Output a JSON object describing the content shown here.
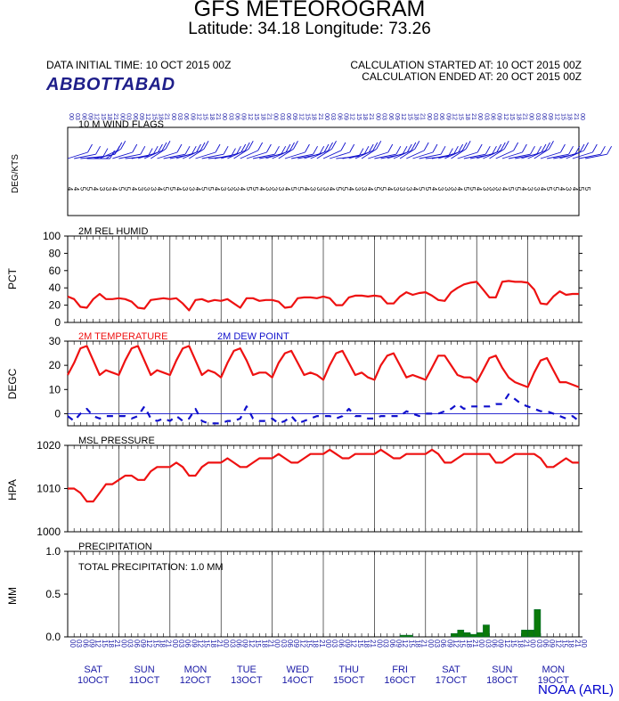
{
  "header": {
    "title": "GFS METEOROGRAM",
    "subtitle": "Latitude: 34.18 Longitude:  73.26",
    "data_initial_time": "DATA INITIAL TIME: 10 OCT 2015 00Z",
    "calc_started": "CALCULATION STARTED AT: 10 OCT 2015 00Z",
    "calc_ended": "CALCULATION ENDED AT: 20 OCT 2015 00Z",
    "station": "ABBOTTABAD",
    "credit": "NOAA (ARL)"
  },
  "colors": {
    "red": "#ee1111",
    "blue": "#1010cc",
    "green": "#0a7a0a",
    "axis_blue": "#1a1aa6"
  },
  "x_axis": {
    "hour_labels": [
      "00",
      "03",
      "06",
      "09",
      "12",
      "15",
      "18",
      "21"
    ],
    "days": [
      {
        "day": "SAT",
        "date": "10OCT"
      },
      {
        "day": "SUN",
        "date": "11OCT"
      },
      {
        "day": "MON",
        "date": "12OCT"
      },
      {
        "day": "TUE",
        "date": "13OCT"
      },
      {
        "day": "WED",
        "date": "14OCT"
      },
      {
        "day": "THU",
        "date": "15OCT"
      },
      {
        "day": "FRI",
        "date": "16OCT"
      },
      {
        "day": "SAT",
        "date": "17OCT"
      },
      {
        "day": "SUN",
        "date": "18OCT"
      },
      {
        "day": "MON",
        "date": "19OCT"
      }
    ]
  },
  "chart_data": [
    {
      "type": "wind-barbs",
      "title": "10 M  WIND FLAGS",
      "ylabel": "DEG/KTS",
      "hours_step": 3,
      "direction_deg": [
        240,
        250,
        260,
        270,
        250,
        230,
        220,
        240,
        250,
        260,
        250,
        240,
        230,
        220,
        240,
        250,
        250,
        240,
        230,
        220,
        240,
        250,
        260,
        250,
        240,
        230,
        220,
        230,
        240,
        250,
        250,
        240,
        230,
        220,
        240,
        250,
        250,
        240,
        230,
        220,
        230,
        240,
        260,
        250,
        240,
        230,
        220,
        240,
        250,
        250,
        240,
        230,
        220,
        230,
        240,
        250,
        260,
        250,
        240,
        230,
        220,
        240,
        250,
        250,
        240,
        230,
        220,
        230,
        240,
        250,
        250,
        240,
        230,
        220,
        240,
        250,
        250,
        240,
        230,
        240,
        250,
        250
      ],
      "speed_kt": [
        4,
        4,
        5,
        5,
        4,
        3,
        3,
        4,
        5,
        5,
        4,
        3,
        3,
        3,
        4,
        5,
        5,
        4,
        3,
        3,
        4,
        5,
        5,
        4,
        3,
        3,
        3,
        4,
        5,
        5,
        4,
        3,
        3,
        3,
        4,
        5,
        5,
        4,
        3,
        3,
        3,
        4,
        5,
        5,
        4,
        3,
        3,
        4,
        5,
        5,
        4,
        3,
        3,
        3,
        4,
        5,
        5,
        4,
        3,
        3,
        3,
        4,
        5,
        5,
        4,
        3,
        3,
        3,
        4,
        5,
        5,
        4,
        3,
        3,
        4,
        5,
        5,
        4,
        3,
        4,
        5,
        5
      ]
    },
    {
      "type": "line",
      "title": "2M REL HUMID",
      "ylabel": "PCT",
      "ylim": [
        0,
        100
      ],
      "yticks": [
        0,
        20,
        40,
        60,
        80,
        100
      ],
      "hours_step": 3,
      "series": [
        {
          "name": "2M REL HUMID",
          "values": [
            30,
            27,
            18,
            17,
            27,
            33,
            27,
            27,
            28,
            27,
            24,
            17,
            16,
            26,
            27,
            28,
            27,
            28,
            22,
            14,
            26,
            27,
            24,
            26,
            25,
            27,
            22,
            17,
            28,
            28,
            25,
            26,
            26,
            24,
            17,
            18,
            28,
            29,
            29,
            28,
            30,
            28,
            20,
            20,
            29,
            31,
            31,
            30,
            31,
            30,
            22,
            22,
            30,
            35,
            32,
            34,
            35,
            31,
            26,
            25,
            35,
            40,
            44,
            46,
            47,
            38,
            29,
            29,
            47,
            48,
            47,
            47,
            46,
            38,
            22,
            21,
            30,
            36,
            32,
            33,
            33
          ]
        }
      ]
    },
    {
      "type": "line",
      "title": "2M TEMPERATURE",
      "ylabel": "DEGC",
      "ylim": [
        -5,
        30
      ],
      "yticks": [
        0,
        10,
        20,
        30
      ],
      "hours_step": 3,
      "series": [
        {
          "name": "2M TEMPERATURE",
          "values": [
            16,
            21,
            27,
            28,
            22,
            16,
            18,
            17,
            16,
            22,
            27,
            28,
            22,
            16,
            18,
            17,
            16,
            22,
            27,
            28,
            22,
            16,
            18,
            17,
            15,
            21,
            26,
            27,
            22,
            16,
            17,
            17,
            15,
            21,
            25,
            26,
            21,
            16,
            17,
            16,
            14,
            20,
            25,
            26,
            21,
            16,
            17,
            15,
            14,
            20,
            24,
            25,
            20,
            15,
            16,
            15,
            14,
            19,
            24,
            24,
            20,
            16,
            15,
            15,
            13,
            18,
            23,
            24,
            19,
            15,
            13,
            12,
            11,
            17,
            22,
            23,
            18,
            13,
            13,
            12,
            11
          ]
        },
        {
          "name": "2M   DEW POINT",
          "values": [
            -1,
            -3,
            0,
            2,
            -1,
            -2,
            -1,
            -1,
            -1,
            -1,
            -2,
            -1,
            3,
            -2,
            -3,
            -2,
            -3,
            -1,
            -3,
            -2,
            2,
            -3,
            -4,
            -4,
            -4,
            -3,
            -3,
            -2,
            3,
            -2,
            -3,
            -3,
            -2,
            -4,
            -3,
            -1,
            -4,
            -3,
            -2,
            -1,
            -1,
            -1,
            -2,
            -1,
            2,
            -1,
            -1,
            -2,
            -2,
            -1,
            -1,
            -1,
            -1,
            1,
            0,
            -1,
            0,
            0,
            0,
            1,
            2,
            4,
            2,
            3,
            3,
            3,
            3,
            4,
            4,
            8,
            6,
            4,
            3,
            2,
            1,
            1,
            0,
            -1,
            -2,
            -1,
            -3
          ]
        }
      ]
    },
    {
      "type": "line",
      "title": "MSL PRESSURE",
      "ylabel": "HPA",
      "ylim": [
        1000,
        1020
      ],
      "yticks": [
        1000,
        1010,
        1020
      ],
      "hours_step": 3,
      "series": [
        {
          "name": "MSL PRESSURE",
          "values": [
            1010,
            1010,
            1009,
            1007,
            1007,
            1009,
            1011,
            1011,
            1012,
            1013,
            1013,
            1012,
            1012,
            1014,
            1015,
            1015,
            1015,
            1016,
            1015,
            1013,
            1013,
            1015,
            1016,
            1016,
            1016,
            1017,
            1016,
            1015,
            1015,
            1016,
            1017,
            1017,
            1017,
            1018,
            1017,
            1016,
            1016,
            1017,
            1018,
            1018,
            1018,
            1019,
            1018,
            1017,
            1017,
            1018,
            1018,
            1018,
            1018,
            1019,
            1018,
            1017,
            1017,
            1018,
            1018,
            1018,
            1018,
            1019,
            1018,
            1016,
            1016,
            1017,
            1018,
            1018,
            1018,
            1018,
            1018,
            1016,
            1016,
            1017,
            1018,
            1018,
            1018,
            1018,
            1017,
            1015,
            1015,
            1016,
            1017,
            1016,
            1016
          ]
        }
      ]
    },
    {
      "type": "bar",
      "title": "PRECIPITATION",
      "annotation": "TOTAL PRECIPITATION:   1.0 MM",
      "ylabel": "MM",
      "ylim": [
        0,
        1.0
      ],
      "yticks": [
        "0.0",
        "0.5",
        "1.0"
      ],
      "hours_step": 3,
      "series": [
        {
          "name": "PRECIPITATION",
          "values": [
            0,
            0,
            0,
            0,
            0,
            0,
            0,
            0,
            0,
            0,
            0,
            0,
            0,
            0,
            0,
            0,
            0,
            0,
            0,
            0,
            0,
            0,
            0,
            0,
            0,
            0,
            0,
            0,
            0,
            0,
            0,
            0,
            0,
            0,
            0,
            0,
            0,
            0,
            0,
            0,
            0,
            0,
            0,
            0,
            0,
            0,
            0,
            0,
            0,
            0,
            0,
            0,
            0.02,
            0.02,
            0,
            0,
            0,
            0,
            0,
            0,
            0.04,
            0.08,
            0.05,
            0.03,
            0.05,
            0.14,
            0,
            0,
            0,
            0,
            0,
            0.08,
            0.08,
            0.32,
            0,
            0,
            0,
            0,
            0,
            0,
            0
          ]
        }
      ]
    }
  ]
}
